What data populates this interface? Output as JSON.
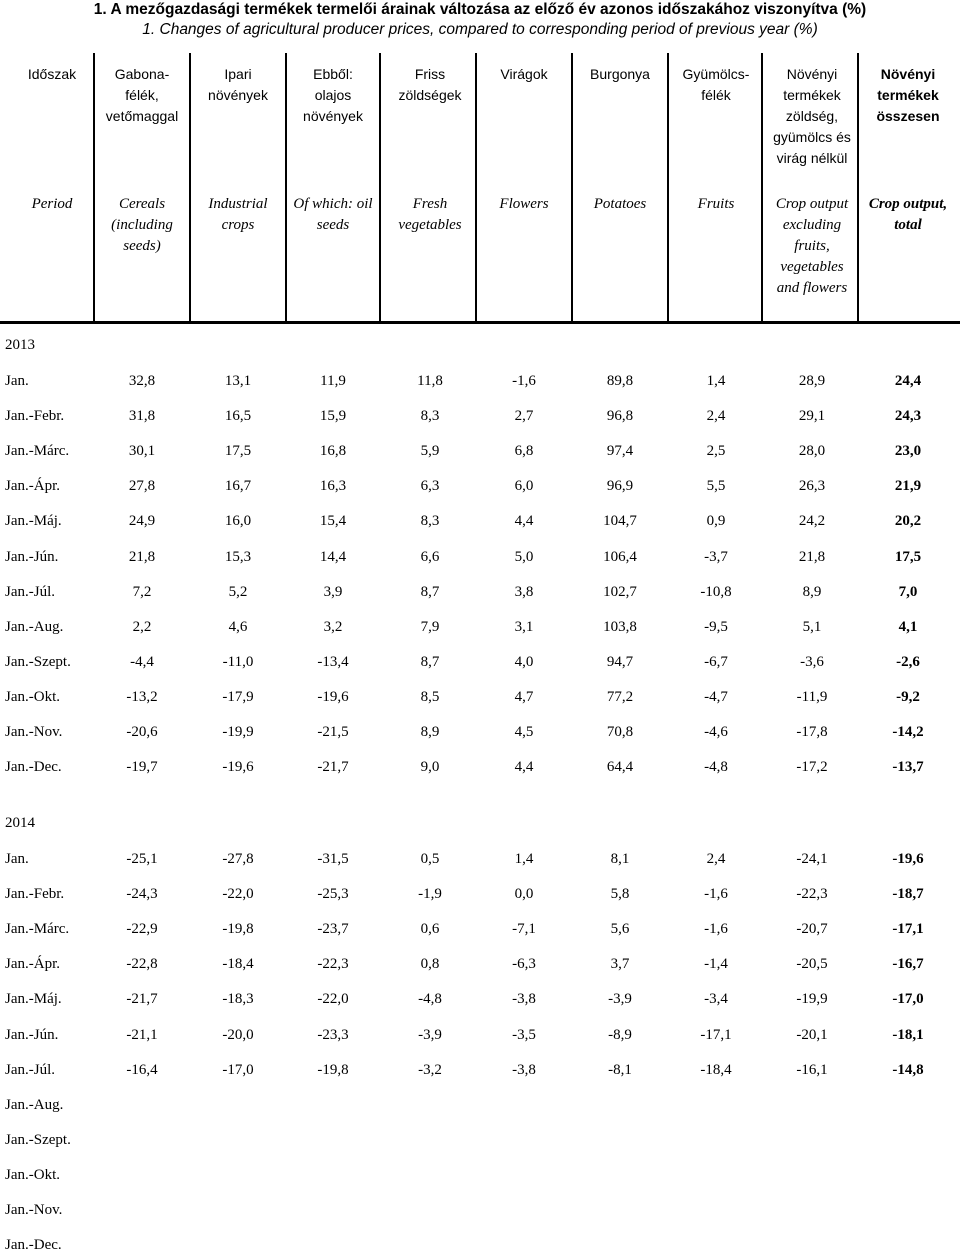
{
  "title_hu": "1. A mezőgazdasági termékek termelői árainak változása az előző év azonos időszakához viszonyítva (%)",
  "title_en": "1. Changes of agricultural producer prices, compared to corresponding period of previous year (%)",
  "columns_hu": [
    "Időszak",
    "Gabona-\nfélék,\nvetőmaggal",
    "Ipari\nnövények",
    "Ebből:\nolajos\nnövények",
    "Friss\nzöldségek",
    "Virágok",
    "Burgonya",
    "Gyümölcs-\nfélék",
    "Növényi\ntermékek\nzöldség,\ngyümölcs és\nvirág nélkül",
    "Növényi\ntermékek\nösszesen"
  ],
  "columns_en": [
    "Period",
    "Cereals\n(including\nseeds)",
    "Industrial\ncrops",
    "Of which: oil\nseeds",
    "Fresh\nvegetables",
    "Flowers",
    "Potatoes",
    "Fruits",
    "Crop output\nexcluding\nfruits,\nvegetables\nand flowers",
    "Crop output,\ntotal"
  ],
  "years": [
    {
      "year": "2013",
      "rows": [
        {
          "period": "Jan.",
          "values": [
            "32,8",
            "13,1",
            "11,9",
            "11,8",
            "-1,6",
            "89,8",
            "1,4",
            "28,9",
            "24,4"
          ]
        },
        {
          "period": "Jan.-Febr.",
          "values": [
            "31,8",
            "16,5",
            "15,9",
            "8,3",
            "2,7",
            "96,8",
            "2,4",
            "29,1",
            "24,3"
          ]
        },
        {
          "period": "Jan.-Márc.",
          "values": [
            "30,1",
            "17,5",
            "16,8",
            "5,9",
            "6,8",
            "97,4",
            "2,5",
            "28,0",
            "23,0"
          ]
        },
        {
          "period": "Jan.-Ápr.",
          "values": [
            "27,8",
            "16,7",
            "16,3",
            "6,3",
            "6,0",
            "96,9",
            "5,5",
            "26,3",
            "21,9"
          ]
        },
        {
          "period": "Jan.-Máj.",
          "values": [
            "24,9",
            "16,0",
            "15,4",
            "8,3",
            "4,4",
            "104,7",
            "0,9",
            "24,2",
            "20,2"
          ]
        },
        {
          "period": "Jan.-Jún.",
          "values": [
            "21,8",
            "15,3",
            "14,4",
            "6,6",
            "5,0",
            "106,4",
            "-3,7",
            "21,8",
            "17,5"
          ]
        },
        {
          "period": "Jan.-Júl.",
          "values": [
            "7,2",
            "5,2",
            "3,9",
            "8,7",
            "3,8",
            "102,7",
            "-10,8",
            "8,9",
            "7,0"
          ]
        },
        {
          "period": "Jan.-Aug.",
          "values": [
            "2,2",
            "4,6",
            "3,2",
            "7,9",
            "3,1",
            "103,8",
            "-9,5",
            "5,1",
            "4,1"
          ]
        },
        {
          "period": "Jan.-Szept.",
          "values": [
            "-4,4",
            "-11,0",
            "-13,4",
            "8,7",
            "4,0",
            "94,7",
            "-6,7",
            "-3,6",
            "-2,6"
          ]
        },
        {
          "period": "Jan.-Okt.",
          "values": [
            "-13,2",
            "-17,9",
            "-19,6",
            "8,5",
            "4,7",
            "77,2",
            "-4,7",
            "-11,9",
            "-9,2"
          ]
        },
        {
          "period": "Jan.-Nov.",
          "values": [
            "-20,6",
            "-19,9",
            "-21,5",
            "8,9",
            "4,5",
            "70,8",
            "-4,6",
            "-17,8",
            "-14,2"
          ]
        },
        {
          "period": "Jan.-Dec.",
          "values": [
            "-19,7",
            "-19,6",
            "-21,7",
            "9,0",
            "4,4",
            "64,4",
            "-4,8",
            "-17,2",
            "-13,7"
          ]
        }
      ]
    },
    {
      "year": "2014",
      "rows": [
        {
          "period": "Jan.",
          "values": [
            "-25,1",
            "-27,8",
            "-31,5",
            "0,5",
            "1,4",
            "8,1",
            "2,4",
            "-24,1",
            "-19,6"
          ]
        },
        {
          "period": "Jan.-Febr.",
          "values": [
            "-24,3",
            "-22,0",
            "-25,3",
            "-1,9",
            "0,0",
            "5,8",
            "-1,6",
            "-22,3",
            "-18,7"
          ]
        },
        {
          "period": "Jan.-Márc.",
          "values": [
            "-22,9",
            "-19,8",
            "-23,7",
            "0,6",
            "-7,1",
            "5,6",
            "-1,6",
            "-20,7",
            "-17,1"
          ]
        },
        {
          "period": "Jan.-Ápr.",
          "values": [
            "-22,8",
            "-18,4",
            "-22,3",
            "0,8",
            "-6,3",
            "3,7",
            "-1,4",
            "-20,5",
            "-16,7"
          ]
        },
        {
          "period": "Jan.-Máj.",
          "values": [
            "-21,7",
            "-18,3",
            "-22,0",
            "-4,8",
            "-3,8",
            "-3,9",
            "-3,4",
            "-19,9",
            "-17,0"
          ]
        },
        {
          "period": "Jan.-Jún.",
          "values": [
            "-21,1",
            "-20,0",
            "-23,3",
            "-3,9",
            "-3,5",
            "-8,9",
            "-17,1",
            "-20,1",
            "-18,1"
          ]
        },
        {
          "period": "Jan.-Júl.",
          "values": [
            "-16,4",
            "-17,0",
            "-19,8",
            "-3,2",
            "-3,8",
            "-8,1",
            "-18,4",
            "-16,1",
            "-14,8"
          ]
        },
        {
          "period": "Jan.-Aug.",
          "values": []
        },
        {
          "period": "Jan.-Szept.",
          "values": []
        },
        {
          "period": "Jan.-Okt.",
          "values": []
        },
        {
          "period": "Jan.-Nov.",
          "values": []
        },
        {
          "period": "Jan.-Dec.",
          "values": []
        }
      ]
    }
  ]
}
